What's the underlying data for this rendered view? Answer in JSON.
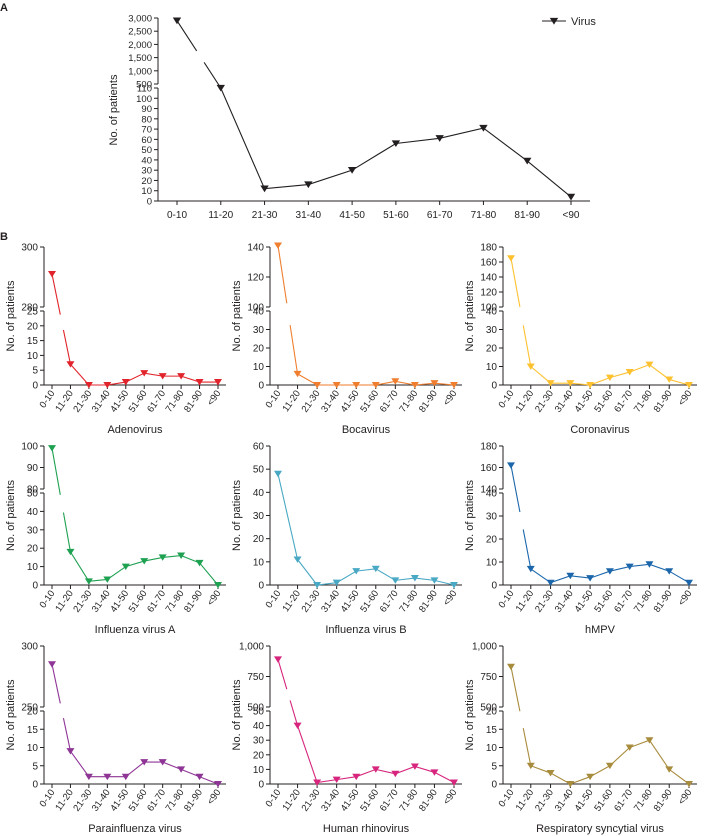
{
  "figure": {
    "panel_a_label": "A",
    "panel_b_label": "B",
    "ylabel": "No. of patients",
    "legend_label": "Virus"
  },
  "chart_data": [
    {
      "type": "line",
      "panel": "A",
      "title": "Virus",
      "xlabel": "",
      "ylabel": "No. of patients",
      "categories": [
        "0-10",
        "11-20",
        "21-30",
        "31-40",
        "41-50",
        "51-60",
        "61-70",
        "71-80",
        "81-90",
        "<90"
      ],
      "values": [
        2900,
        112,
        12,
        16,
        30,
        56,
        61,
        71,
        39,
        4
      ],
      "color": "#231f20",
      "ylim": [
        0,
        3000
      ],
      "axis_break": [
        110,
        500
      ],
      "ticks": [
        0,
        10,
        20,
        30,
        40,
        50,
        60,
        70,
        80,
        90,
        100,
        110,
        500,
        1000,
        1500,
        2000,
        2500,
        3000
      ],
      "tick_labels": [
        "0",
        "10",
        "20",
        "30",
        "40",
        "50",
        "60",
        "70",
        "80",
        "90",
        "100",
        "110",
        "500",
        "1,000",
        "1,500",
        "2,000",
        "2,500",
        "3,000"
      ],
      "legend": "top-right"
    },
    {
      "type": "line",
      "panel": "B",
      "title": "Adenovirus",
      "ylabel": "No. of patients",
      "categories": [
        "0-10",
        "11-20",
        "21-30",
        "31-40",
        "41-50",
        "51-60",
        "61-70",
        "71-80",
        "81-90",
        "<90"
      ],
      "values": [
        291,
        7,
        0,
        0,
        1,
        4,
        3,
        3,
        1,
        1
      ],
      "color": "#e1242b",
      "ylim": [
        0,
        300
      ],
      "axis_break": [
        25,
        280
      ],
      "ticks": [
        0,
        5,
        10,
        15,
        20,
        25,
        280,
        300
      ],
      "tick_labels": [
        "0",
        "5",
        "10",
        "15",
        "20",
        "25",
        "280",
        "300"
      ]
    },
    {
      "type": "line",
      "panel": "B",
      "title": "Bocavirus",
      "ylabel": "No. of patients",
      "categories": [
        "0-10",
        "11-20",
        "21-30",
        "31-40",
        "41-50",
        "51-60",
        "61-70",
        "71-80",
        "81-90",
        "<90"
      ],
      "values": [
        141,
        6,
        0,
        0,
        0,
        0,
        2,
        0,
        1,
        0
      ],
      "color": "#ef7e2e",
      "ylim": [
        0,
        140
      ],
      "axis_break": [
        40,
        100
      ],
      "ticks": [
        0,
        10,
        20,
        30,
        40,
        100,
        120,
        140
      ],
      "tick_labels": [
        "0",
        "10",
        "20",
        "30",
        "40",
        "100",
        "120",
        "140"
      ]
    },
    {
      "type": "line",
      "panel": "B",
      "title": "Coronavirus",
      "ylabel": "No. of patients",
      "categories": [
        "0-10",
        "11-20",
        "21-30",
        "31-40",
        "41-50",
        "51-60",
        "61-70",
        "71-80",
        "81-90",
        "<90"
      ],
      "values": [
        165,
        10,
        1,
        1,
        0,
        4,
        7,
        11,
        3,
        0
      ],
      "color": "#fdc130",
      "ylim": [
        0,
        180
      ],
      "axis_break": [
        40,
        100
      ],
      "ticks": [
        0,
        10,
        20,
        30,
        40,
        100,
        120,
        140,
        160,
        180
      ],
      "tick_labels": [
        "0",
        "10",
        "20",
        "30",
        "40",
        "100",
        "120",
        "140",
        "160",
        "180"
      ]
    },
    {
      "type": "line",
      "panel": "B",
      "title": "Influenza virus A",
      "ylabel": "No. of patients",
      "categories": [
        "0-10",
        "11-20",
        "21-30",
        "31-40",
        "41-50",
        "51-60",
        "61-70",
        "71-80",
        "81-90",
        "<90"
      ],
      "values": [
        99,
        18,
        2,
        3,
        10,
        13,
        15,
        16,
        12,
        0
      ],
      "color": "#1fa152",
      "ylim": [
        0,
        100
      ],
      "axis_break": [
        50,
        80
      ],
      "ticks": [
        0,
        10,
        20,
        30,
        40,
        50,
        80,
        90,
        100
      ],
      "tick_labels": [
        "0",
        "10",
        "20",
        "30",
        "40",
        "50",
        "80",
        "90",
        "100"
      ]
    },
    {
      "type": "line",
      "panel": "B",
      "title": "Influenza virus B",
      "ylabel": "No. of patients",
      "categories": [
        "0-10",
        "11-20",
        "21-30",
        "31-40",
        "41-50",
        "51-60",
        "61-70",
        "71-80",
        "81-90",
        "<90"
      ],
      "values": [
        48,
        11,
        0,
        1,
        6,
        7,
        2,
        3,
        2,
        0
      ],
      "color": "#49a8c4",
      "ylim": [
        0,
        60
      ],
      "axis_break": null,
      "ticks": [
        0,
        10,
        20,
        30,
        40,
        50,
        60
      ],
      "tick_labels": [
        "0",
        "10",
        "20",
        "30",
        "40",
        "50",
        "60"
      ]
    },
    {
      "type": "line",
      "panel": "B",
      "title": "hMPV",
      "ylabel": "No. of patients",
      "categories": [
        "0-10",
        "11-20",
        "21-30",
        "31-40",
        "41-50",
        "51-60",
        "61-70",
        "71-80",
        "81-90",
        "<90"
      ],
      "values": [
        162,
        7,
        1,
        4,
        3,
        6,
        8,
        9,
        6,
        1
      ],
      "color": "#1c67ab",
      "ylim": [
        0,
        180
      ],
      "axis_break": [
        40,
        140
      ],
      "ticks": [
        0,
        10,
        20,
        30,
        40,
        140,
        160,
        180
      ],
      "tick_labels": [
        "0",
        "10",
        "20",
        "30",
        "40",
        "140",
        "160",
        "180"
      ]
    },
    {
      "type": "line",
      "panel": "B",
      "title": "Parainfluenza virus",
      "ylabel": "No. of patients",
      "categories": [
        "0-10",
        "11-20",
        "21-30",
        "31-40",
        "41-50",
        "51-60",
        "61-70",
        "71-80",
        "81-90",
        "<90"
      ],
      "values": [
        285,
        9,
        2,
        2,
        2,
        6,
        6,
        4,
        2,
        0
      ],
      "color": "#8e3596",
      "ylim": [
        0,
        300
      ],
      "axis_break": [
        20,
        250
      ],
      "ticks": [
        0,
        5,
        10,
        15,
        20,
        250,
        300
      ],
      "tick_labels": [
        "0",
        "5",
        "10",
        "15",
        "20",
        "250",
        "300"
      ]
    },
    {
      "type": "line",
      "panel": "B",
      "title": "Human rhinovirus",
      "ylabel": "No. of patients",
      "categories": [
        "0-10",
        "11-20",
        "21-30",
        "31-40",
        "41-50",
        "51-60",
        "61-70",
        "71-80",
        "81-90",
        "<90"
      ],
      "values": [
        890,
        40,
        1,
        3,
        5,
        10,
        7,
        12,
        8,
        1
      ],
      "color": "#d7257d",
      "ylim": [
        0,
        1000
      ],
      "axis_break": [
        50,
        500
      ],
      "ticks": [
        0,
        10,
        20,
        30,
        40,
        50,
        500,
        750,
        1000
      ],
      "tick_labels": [
        "0",
        "10",
        "20",
        "30",
        "40",
        "50",
        "500",
        "750",
        "1,000"
      ]
    },
    {
      "type": "line",
      "panel": "B",
      "title": "Respiratory syncytial virus",
      "ylabel": "No. of patients",
      "categories": [
        "0-10",
        "11-20",
        "21-30",
        "31-40",
        "41-50",
        "51-60",
        "61-70",
        "71-80",
        "81-90",
        "<90"
      ],
      "values": [
        830,
        5,
        3,
        0,
        2,
        5,
        10,
        12,
        4,
        0
      ],
      "color": "#a88c3d",
      "ylim": [
        0,
        1000
      ],
      "axis_break": [
        20,
        500
      ],
      "ticks": [
        0,
        5,
        10,
        15,
        20,
        500,
        750,
        1000
      ],
      "tick_labels": [
        "0",
        "5",
        "10",
        "15",
        "20",
        "500",
        "750",
        "1,000"
      ]
    }
  ]
}
